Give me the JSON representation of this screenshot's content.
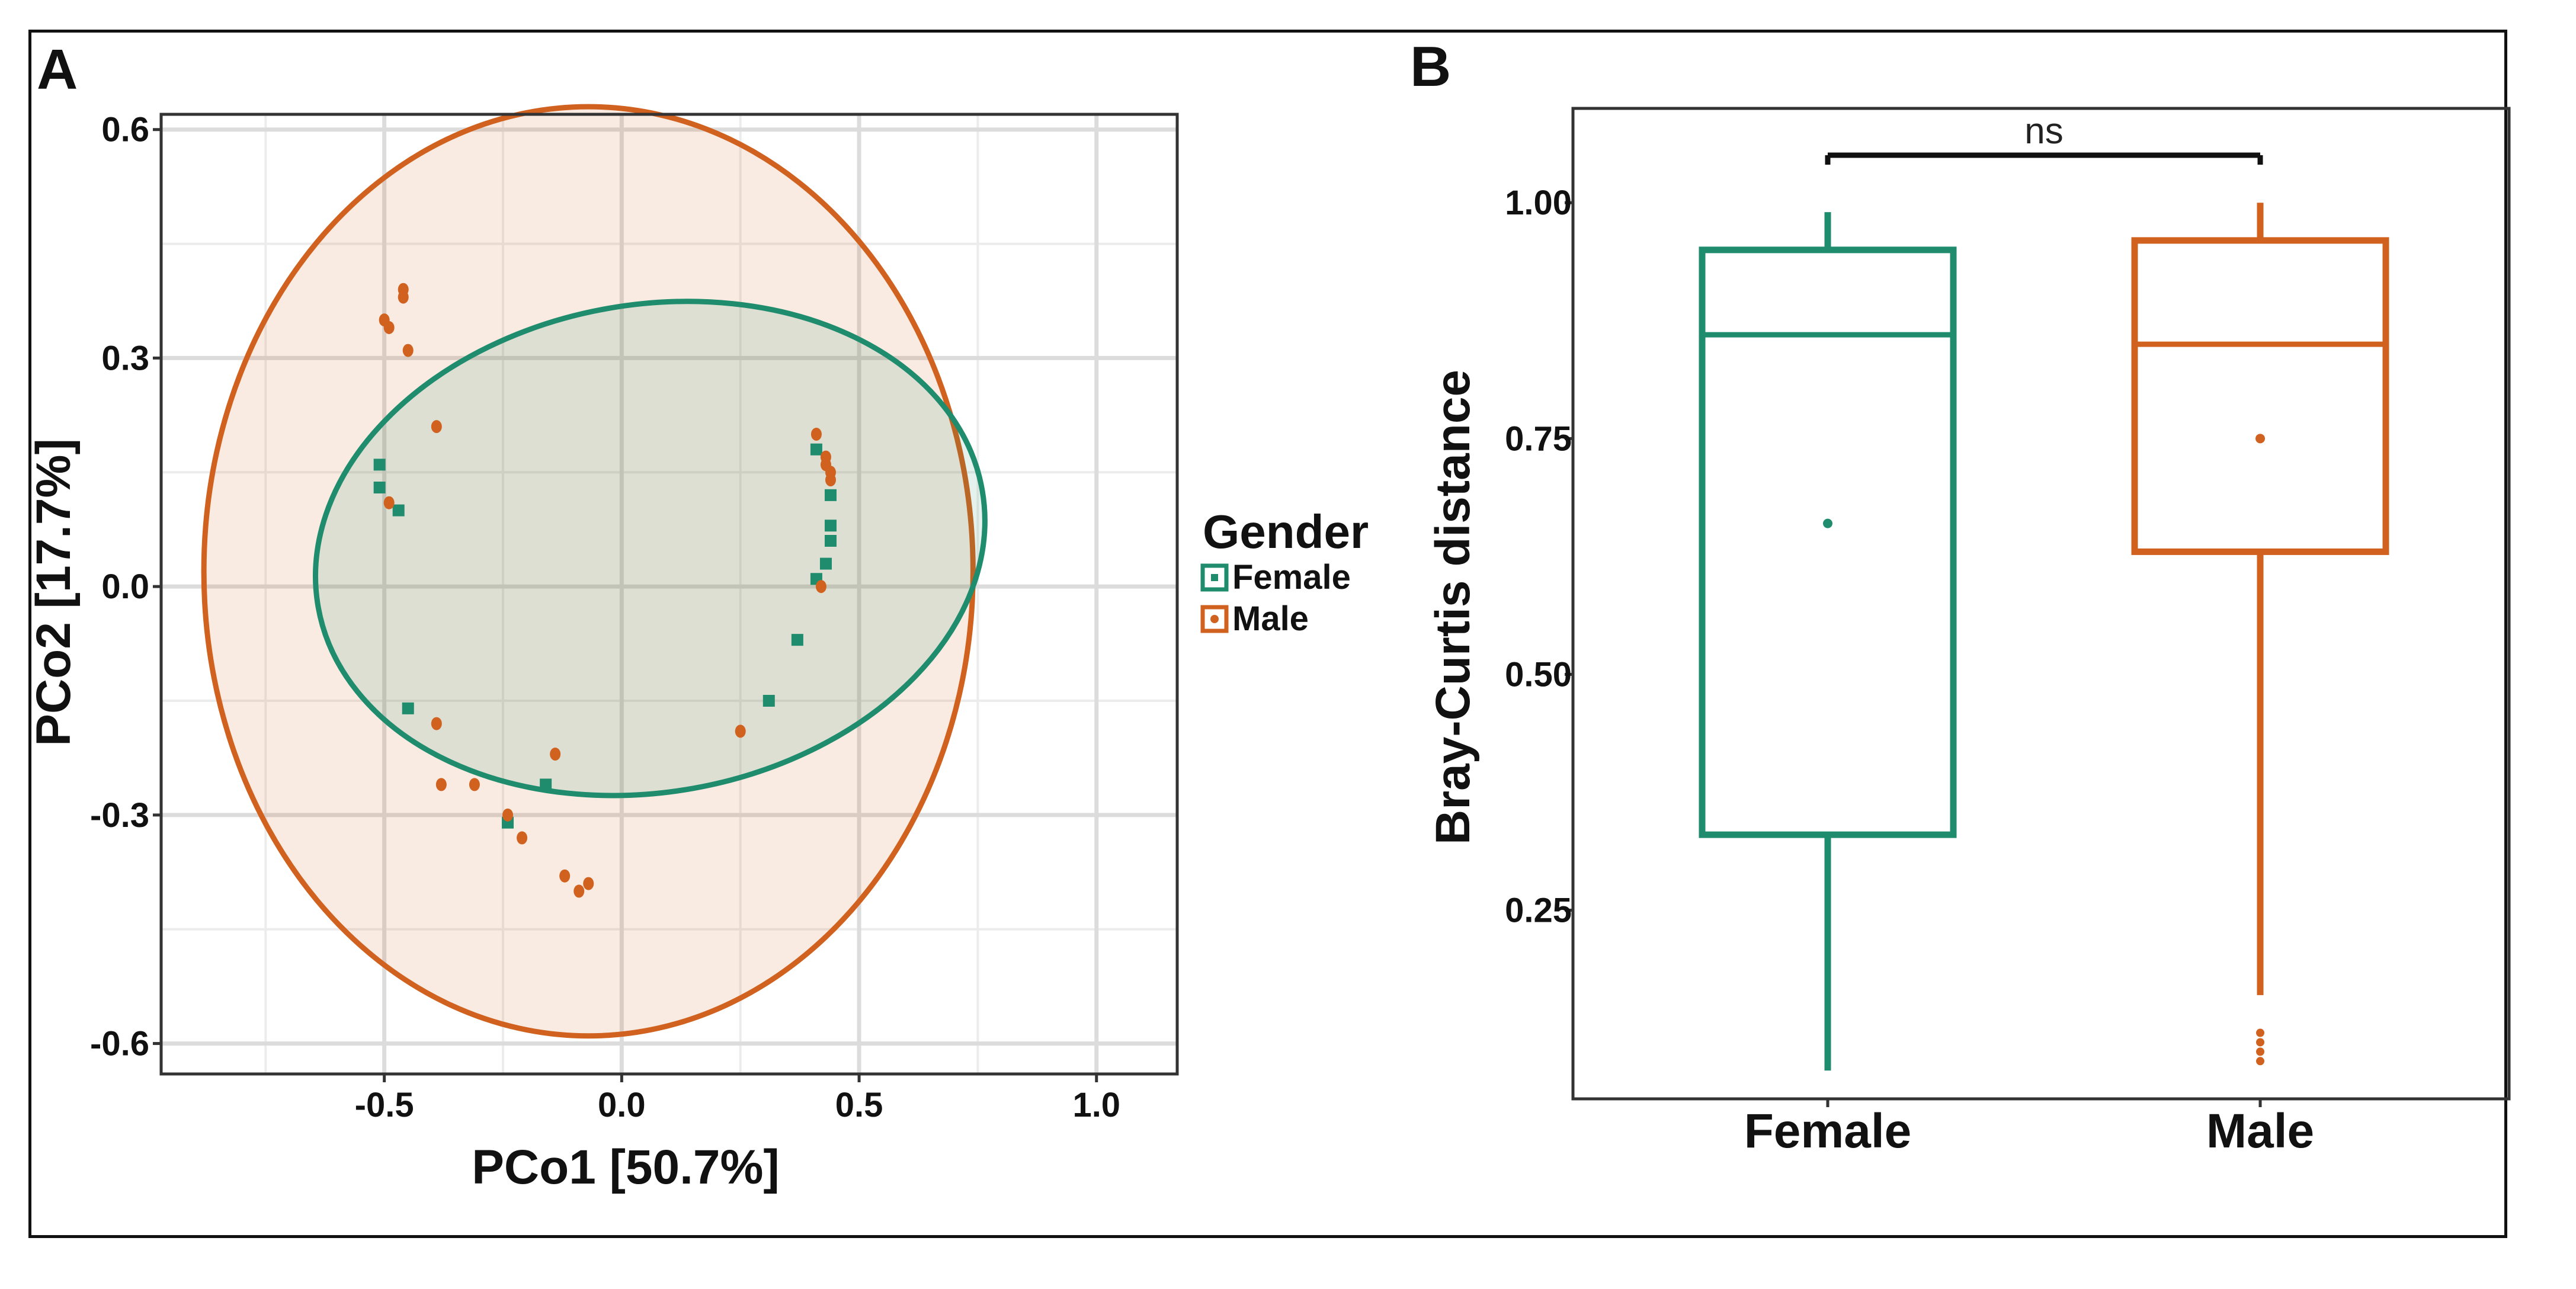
{
  "chart_data": [
    {
      "panel_label": "A",
      "type": "scatter",
      "xlabel": "PCo1 [50.7%]",
      "ylabel": "PCo2 [17.7%]",
      "xlim": [
        -0.97,
        1.17
      ],
      "ylim": [
        -0.64,
        0.62
      ],
      "xticks": [
        -0.5,
        0.0,
        0.5,
        1.0
      ],
      "xtick_labels": [
        "-0.5",
        "0.0",
        "0.5",
        "1.0"
      ],
      "yticks": [
        -0.6,
        -0.3,
        0.0,
        0.3,
        0.6
      ],
      "ytick_labels": [
        "-0.6",
        "-0.3",
        "0.0",
        "0.3",
        "0.6"
      ],
      "grid": true,
      "legend": {
        "title": "Gender",
        "position": "right"
      },
      "series": [
        {
          "name": "Female",
          "color": "#1e8c6d",
          "marker": "square",
          "points": [
            [
              -0.51,
              0.16
            ],
            [
              -0.51,
              0.13
            ],
            [
              -0.47,
              0.1
            ],
            [
              -0.45,
              -0.16
            ],
            [
              -0.24,
              -0.31
            ],
            [
              -0.16,
              -0.26
            ],
            [
              0.31,
              -0.15
            ],
            [
              0.37,
              -0.07
            ],
            [
              0.41,
              0.01
            ],
            [
              0.43,
              0.03
            ],
            [
              0.44,
              0.06
            ],
            [
              0.44,
              0.08
            ],
            [
              0.44,
              0.12
            ],
            [
              0.41,
              0.18
            ]
          ],
          "ellipse": {
            "center": [
              0.06,
              0.05
            ],
            "semi_axes": [
              0.71,
              0.32
            ],
            "angle_deg": 10
          }
        },
        {
          "name": "Male",
          "color": "#d0611e",
          "marker": "circle",
          "points": [
            [
              -0.46,
              0.39
            ],
            [
              -0.46,
              0.38
            ],
            [
              -0.5,
              0.35
            ],
            [
              -0.49,
              0.34
            ],
            [
              -0.45,
              0.31
            ],
            [
              -0.39,
              0.21
            ],
            [
              -0.49,
              0.11
            ],
            [
              -0.39,
              -0.18
            ],
            [
              -0.38,
              -0.26
            ],
            [
              -0.31,
              -0.26
            ],
            [
              -0.24,
              -0.3
            ],
            [
              -0.21,
              -0.33
            ],
            [
              -0.14,
              -0.22
            ],
            [
              -0.12,
              -0.38
            ],
            [
              -0.09,
              -0.4
            ],
            [
              -0.07,
              -0.39
            ],
            [
              0.25,
              -0.19
            ],
            [
              0.41,
              0.2
            ],
            [
              0.42,
              0.0
            ],
            [
              0.43,
              0.17
            ],
            [
              0.43,
              0.16
            ],
            [
              0.44,
              0.15
            ],
            [
              0.44,
              0.14
            ]
          ],
          "ellipse": {
            "center": [
              -0.07,
              0.02
            ],
            "semi_axes": [
              0.81,
              0.61
            ],
            "angle_deg": 0
          }
        }
      ]
    },
    {
      "panel_label": "B",
      "type": "box",
      "xlabel": "",
      "ylabel": "Bray-Curtis distance",
      "ylim": [
        0.05,
        1.1
      ],
      "yticks": [
        0.25,
        0.5,
        0.75,
        1.0
      ],
      "ytick_labels": [
        "0.25",
        "0.50",
        "0.75",
        "1.00"
      ],
      "categories": [
        "Female",
        "Male"
      ],
      "colors": [
        "#1e8c6d",
        "#d0611e"
      ],
      "boxes": [
        {
          "name": "Female",
          "whisker_low": 0.08,
          "q1": 0.33,
          "median": 0.86,
          "q3": 0.95,
          "whisker_high": 0.99,
          "mean": 0.66,
          "outliers": []
        },
        {
          "name": "Male",
          "whisker_low": 0.16,
          "q1": 0.63,
          "median": 0.85,
          "q3": 0.96,
          "whisker_high": 1.0,
          "mean": 0.75,
          "outliers": [
            0.09,
            0.1,
            0.11,
            0.12
          ]
        }
      ],
      "significance": {
        "label": "ns",
        "between": [
          "Female",
          "Male"
        ]
      }
    }
  ]
}
